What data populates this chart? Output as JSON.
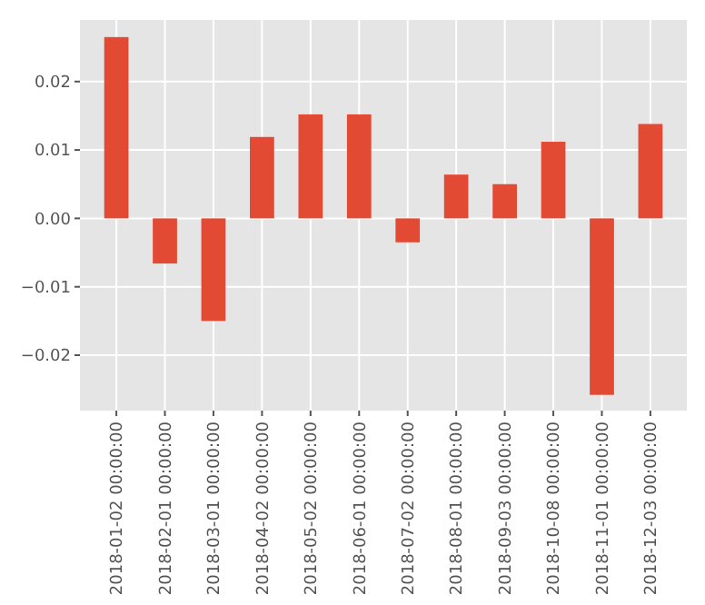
{
  "chart_data": {
    "type": "bar",
    "categories": [
      "2018-01-02 00:00:00",
      "2018-02-01 00:00:00",
      "2018-03-01 00:00:00",
      "2018-04-02 00:00:00",
      "2018-05-02 00:00:00",
      "2018-06-01 00:00:00",
      "2018-07-02 00:00:00",
      "2018-08-01 00:00:00",
      "2018-09-03 00:00:00",
      "2018-10-08 00:00:00",
      "2018-11-01 00:00:00",
      "2018-12-03 00:00:00"
    ],
    "values": [
      0.0265,
      -0.0066,
      -0.015,
      0.0119,
      0.0152,
      0.0152,
      -0.0035,
      0.0064,
      0.005,
      0.0112,
      -0.0258,
      0.0138
    ],
    "color": "#e24a33",
    "ylim": [
      -0.0281,
      0.029
    ],
    "yticks": [
      {
        "value": -0.02,
        "label": "−0.02"
      },
      {
        "value": -0.01,
        "label": "−0.01"
      },
      "0.00",
      0.01,
      0.02
    ],
    "grid": true
  }
}
